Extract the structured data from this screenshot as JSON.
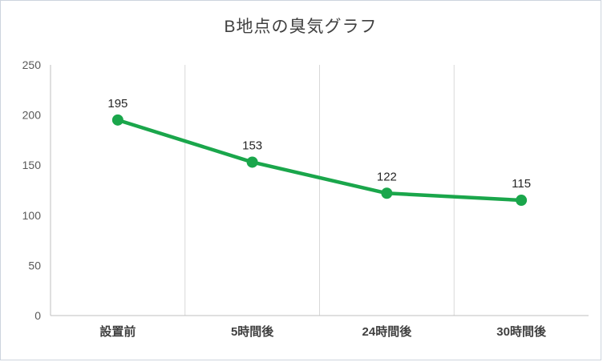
{
  "chart_data": {
    "type": "line",
    "title": "B地点の臭気グラフ",
    "categories": [
      "設置前",
      "5時間後",
      "24時間後",
      "30時間後"
    ],
    "series": [
      {
        "name": "B地点",
        "values": [
          195,
          153,
          122,
          115
        ]
      }
    ],
    "data_labels": [
      "195",
      "153",
      "122",
      "115"
    ],
    "ylim": [
      0,
      250
    ],
    "yticks": [
      0,
      50,
      100,
      150,
      200,
      250
    ],
    "grid": "vertical-only",
    "legend": "none",
    "colors": {
      "line": "#1aa64b",
      "marker": "#1aa64b",
      "grid": "#d9d9d9",
      "axis": "#bfbfbf",
      "ytick_label": "#595959",
      "xtick_label": "#404040",
      "data_label": "#262626",
      "title": "#404040",
      "frame_border": "#cdd4de"
    }
  }
}
